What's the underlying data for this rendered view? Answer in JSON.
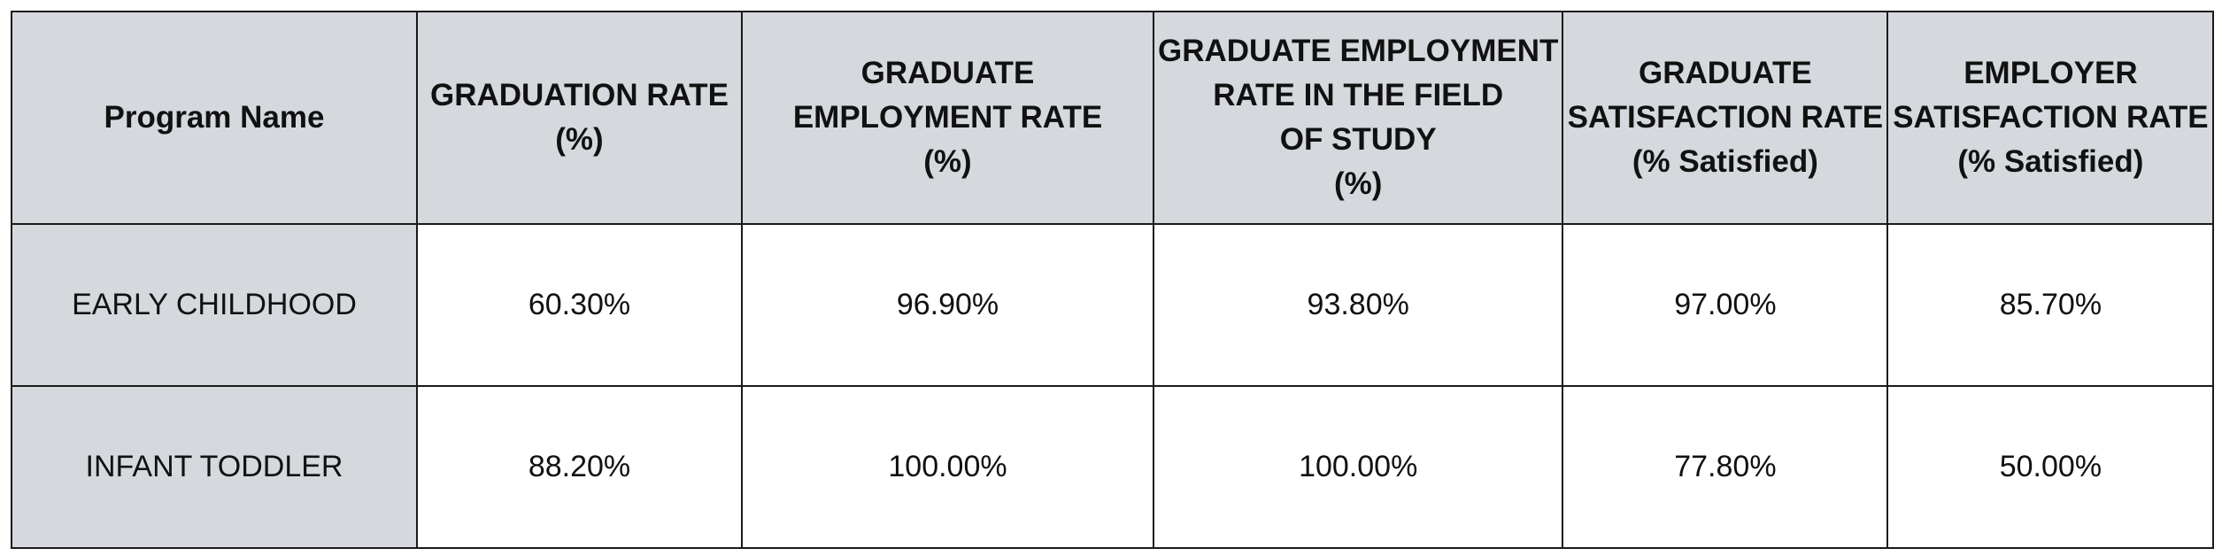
{
  "table": {
    "headers": [
      {
        "lines": [
          "Program Name"
        ]
      },
      {
        "lines": [
          "GRADUATION RATE",
          "(%)"
        ]
      },
      {
        "lines": [
          "GRADUATE",
          "EMPLOYMENT RATE",
          "(%)"
        ]
      },
      {
        "lines": [
          "GRADUATE EMPLOYMENT",
          "RATE IN THE FIELD",
          "OF STUDY",
          "(%)"
        ]
      },
      {
        "lines": [
          "GRADUATE",
          "SATISFACTION RATE",
          "(% Satisfied)"
        ]
      },
      {
        "lines": [
          "EMPLOYER",
          "SATISFACTION RATE",
          "(% Satisfied)"
        ]
      }
    ],
    "rows": [
      {
        "program": "EARLY CHILDHOOD",
        "values": [
          "60.30%",
          "96.90%",
          "93.80%",
          "97.00%",
          "85.70%"
        ]
      },
      {
        "program": "INFANT TODDLER",
        "values": [
          "88.20%",
          "100.00%",
          "100.00%",
          "77.80%",
          "50.00%"
        ]
      }
    ]
  },
  "colors": {
    "header_bg": "#d5d9de",
    "cell_bg": "#ffffff",
    "border": "#1a1a1a"
  }
}
